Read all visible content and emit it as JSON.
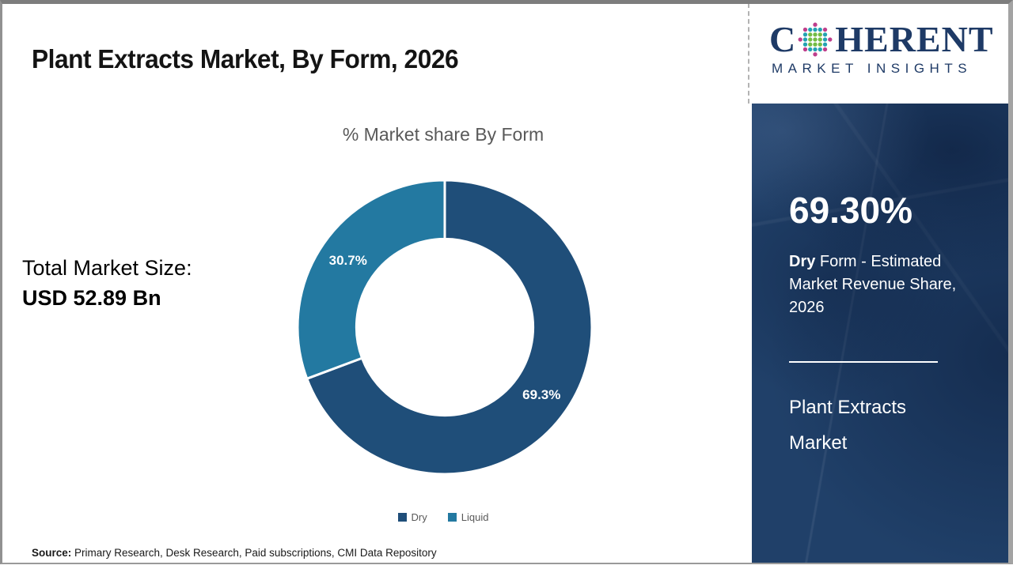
{
  "header": {
    "title": "Plant Extracts Market, By Form, 2026"
  },
  "logo": {
    "letter_c": "C",
    "letters_rest": "HERENT",
    "subtitle": "MARKET INSIGHTS",
    "brand_color": "#1E3A66",
    "globe_dot_colors": {
      "outer": "#BE3E8C",
      "mid": "#23A2B2",
      "inner": "#74BC44"
    }
  },
  "stats": {
    "label": "Total Market Size:",
    "value": "USD 52.89 Bn"
  },
  "panel": {
    "highlight_value": "69.30%",
    "desc_bold": "Dry",
    "desc_rest": " Form - Estimated Market Revenue Share, 2026",
    "product": "Plant Extracts Market",
    "background_color": "#204069"
  },
  "footer": {
    "source_label": "Source:",
    "source_text": " Primary Research, Desk Research, Paid subscriptions, CMI Data Repository"
  },
  "chart_data": {
    "type": "pie",
    "subtype": "donut",
    "title": "% Market share By Form",
    "categories": [
      "Dry",
      "Liquid"
    ],
    "values": [
      69.3,
      30.7
    ],
    "data_labels": [
      "69.3%",
      "30.7%"
    ],
    "colors": [
      "#1F4E79",
      "#2379A1"
    ],
    "start_angle_deg": 0,
    "direction": "clockwise",
    "inner_radius_ratio": 0.6,
    "legend_position": "bottom"
  }
}
